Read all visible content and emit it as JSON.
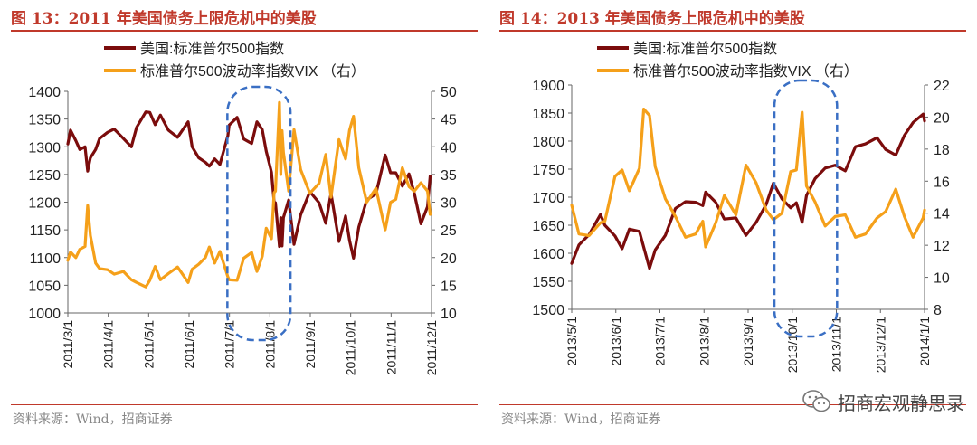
{
  "panels": [
    {
      "title": "图 13：2011 年美国债务上限危机中的美股",
      "source": "资料来源：Wind，招商证券"
    },
    {
      "title": "图 14：2013 年美国债务上限危机中的美股",
      "source": "资料来源：Wind，招商证券"
    }
  ],
  "watermark": {
    "text": "招商宏观静思录",
    "icon": "wechat-icon"
  },
  "colors": {
    "accent": "#c0392b",
    "sp500": "#7b0c0c",
    "vix": "#f5a01a",
    "highlight": "#3a6fc4"
  },
  "chart_data": [
    {
      "type": "line",
      "grid": false,
      "legend_placement": "top",
      "x_tick_labels": [
        "2011/3/1",
        "2011/4/1",
        "2011/5/1",
        "2011/6/1",
        "2011/7/1",
        "2011/8/1",
        "2011/9/1",
        "2011/10/1",
        "2011/11/1",
        "2011/12/1"
      ],
      "x_range": [
        "2011-03-01",
        "2011-12-01"
      ],
      "ylim_left": [
        1000,
        1400
      ],
      "yticks_left": [
        1000,
        1050,
        1100,
        1150,
        1200,
        1250,
        1300,
        1350,
        1400
      ],
      "ylim_right": [
        10,
        50
      ],
      "yticks_right": [
        10,
        15,
        20,
        25,
        30,
        35,
        40,
        45,
        50
      ],
      "highlight_period": [
        "2011-07-01",
        "2011-08-15"
      ],
      "series": [
        {
          "name": "美国:标准普尔500指数",
          "axis": "left",
          "color": "#7b0c0c",
          "points": [
            [
              "2011-03-01",
              1305
            ],
            [
              "2011-03-03",
              1330
            ],
            [
              "2011-03-07",
              1311
            ],
            [
              "2011-03-10",
              1295
            ],
            [
              "2011-03-14",
              1300
            ],
            [
              "2011-03-16",
              1256
            ],
            [
              "2011-03-18",
              1280
            ],
            [
              "2011-03-22",
              1295
            ],
            [
              "2011-03-25",
              1315
            ],
            [
              "2011-03-31",
              1326
            ],
            [
              "2011-04-05",
              1332
            ],
            [
              "2011-04-12",
              1315
            ],
            [
              "2011-04-18",
              1300
            ],
            [
              "2011-04-22",
              1335
            ],
            [
              "2011-04-29",
              1363
            ],
            [
              "2011-05-02",
              1362
            ],
            [
              "2011-05-06",
              1340
            ],
            [
              "2011-05-10",
              1357
            ],
            [
              "2011-05-16",
              1330
            ],
            [
              "2011-05-23",
              1317
            ],
            [
              "2011-05-31",
              1345
            ],
            [
              "2011-06-03",
              1300
            ],
            [
              "2011-06-08",
              1280
            ],
            [
              "2011-06-13",
              1272
            ],
            [
              "2011-06-16",
              1265
            ],
            [
              "2011-06-20",
              1278
            ],
            [
              "2011-06-24",
              1268
            ],
            [
              "2011-06-30",
              1320
            ],
            [
              "2011-07-01",
              1339
            ],
            [
              "2011-07-07",
              1353
            ],
            [
              "2011-07-12",
              1314
            ],
            [
              "2011-07-18",
              1306
            ],
            [
              "2011-07-22",
              1345
            ],
            [
              "2011-07-26",
              1331
            ],
            [
              "2011-07-29",
              1292
            ],
            [
              "2011-08-02",
              1254
            ],
            [
              "2011-08-04",
              1200
            ],
            [
              "2011-08-05",
              1199
            ],
            [
              "2011-08-08",
              1120
            ],
            [
              "2011-08-09",
              1172
            ],
            [
              "2011-08-10",
              1121
            ],
            [
              "2011-08-11",
              1172
            ],
            [
              "2011-08-15",
              1204
            ],
            [
              "2011-08-19",
              1124
            ],
            [
              "2011-08-24",
              1177
            ],
            [
              "2011-08-31",
              1219
            ],
            [
              "2011-09-07",
              1199
            ],
            [
              "2011-09-12",
              1162
            ],
            [
              "2011-09-16",
              1216
            ],
            [
              "2011-09-22",
              1129
            ],
            [
              "2011-09-27",
              1175
            ],
            [
              "2011-09-30",
              1131
            ],
            [
              "2011-10-03",
              1099
            ],
            [
              "2011-10-07",
              1155
            ],
            [
              "2011-10-13",
              1204
            ],
            [
              "2011-10-20",
              1215
            ],
            [
              "2011-10-27",
              1285
            ],
            [
              "2011-10-31",
              1253
            ],
            [
              "2011-11-04",
              1253
            ],
            [
              "2011-11-09",
              1229
            ],
            [
              "2011-11-14",
              1251
            ],
            [
              "2011-11-18",
              1216
            ],
            [
              "2011-11-23",
              1161
            ],
            [
              "2011-11-28",
              1192
            ],
            [
              "2011-11-30",
              1247
            ]
          ]
        },
        {
          "name": "标准普尔500波动率指数VIX （右）",
          "axis": "right",
          "color": "#f5a01a",
          "points": [
            [
              "2011-03-01",
              19.5
            ],
            [
              "2011-03-03",
              21
            ],
            [
              "2011-03-07",
              20
            ],
            [
              "2011-03-10",
              21.5
            ],
            [
              "2011-03-14",
              22
            ],
            [
              "2011-03-16",
              29.4
            ],
            [
              "2011-03-18",
              24
            ],
            [
              "2011-03-22",
              19
            ],
            [
              "2011-03-25",
              18
            ],
            [
              "2011-03-31",
              17.8
            ],
            [
              "2011-04-05",
              17
            ],
            [
              "2011-04-12",
              17.5
            ],
            [
              "2011-04-18",
              16
            ],
            [
              "2011-04-22",
              15.5
            ],
            [
              "2011-04-29",
              14.7
            ],
            [
              "2011-05-02",
              15.9
            ],
            [
              "2011-05-06",
              18.4
            ],
            [
              "2011-05-10",
              16
            ],
            [
              "2011-05-16",
              17.1
            ],
            [
              "2011-05-23",
              18.3
            ],
            [
              "2011-05-31",
              15.5
            ],
            [
              "2011-06-03",
              17.9
            ],
            [
              "2011-06-08",
              18.8
            ],
            [
              "2011-06-13",
              20
            ],
            [
              "2011-06-16",
              21.9
            ],
            [
              "2011-06-20",
              19
            ],
            [
              "2011-06-24",
              21.1
            ],
            [
              "2011-06-30",
              16.5
            ],
            [
              "2011-07-01",
              16
            ],
            [
              "2011-07-07",
              15.9
            ],
            [
              "2011-07-12",
              19.9
            ],
            [
              "2011-07-18",
              20.9
            ],
            [
              "2011-07-22",
              17.5
            ],
            [
              "2011-07-26",
              20.2
            ],
            [
              "2011-07-29",
              25.3
            ],
            [
              "2011-08-02",
              23.4
            ],
            [
              "2011-08-04",
              31.7
            ],
            [
              "2011-08-05",
              32
            ],
            [
              "2011-08-08",
              48
            ],
            [
              "2011-08-09",
              35
            ],
            [
              "2011-08-10",
              42.9
            ],
            [
              "2011-08-11",
              39
            ],
            [
              "2011-08-15",
              32
            ],
            [
              "2011-08-19",
              43.1
            ],
            [
              "2011-08-24",
              35.9
            ],
            [
              "2011-08-31",
              31.6
            ],
            [
              "2011-09-07",
              33.4
            ],
            [
              "2011-09-12",
              38.6
            ],
            [
              "2011-09-16",
              30.9
            ],
            [
              "2011-09-22",
              41.3
            ],
            [
              "2011-09-27",
              37.8
            ],
            [
              "2011-09-30",
              43
            ],
            [
              "2011-10-03",
              45.5
            ],
            [
              "2011-10-07",
              36.2
            ],
            [
              "2011-10-13",
              30
            ],
            [
              "2011-10-20",
              32.5
            ],
            [
              "2011-10-27",
              25
            ],
            [
              "2011-10-31",
              29.96
            ],
            [
              "2011-11-04",
              30.5
            ],
            [
              "2011-11-09",
              36.2
            ],
            [
              "2011-11-14",
              32.8
            ],
            [
              "2011-11-18",
              32
            ],
            [
              "2011-11-23",
              33.5
            ],
            [
              "2011-11-28",
              32
            ],
            [
              "2011-11-30",
              27.8
            ]
          ]
        }
      ]
    },
    {
      "type": "line",
      "grid": false,
      "legend_placement": "top",
      "x_tick_labels": [
        "2013/5/1",
        "2013/6/1",
        "2013/7/1",
        "2013/8/1",
        "2013/9/1",
        "2013/10/1",
        "2013/11/1",
        "2013/12/1",
        "2014/1/1"
      ],
      "x_range": [
        "2013-05-01",
        "2014-01-01"
      ],
      "ylim_left": [
        1500,
        1900
      ],
      "yticks_left": [
        1500,
        1550,
        1600,
        1650,
        1700,
        1750,
        1800,
        1850,
        1900
      ],
      "ylim_right": [
        8,
        22
      ],
      "yticks_right": [
        8,
        10,
        12,
        14,
        16,
        18,
        20,
        22
      ],
      "highlight_period": [
        "2013-09-20",
        "2013-10-31"
      ],
      "series": [
        {
          "name": "美国:标准普尔500指数",
          "axis": "left",
          "color": "#7b0c0c",
          "points": [
            [
              "2013-05-01",
              1582
            ],
            [
              "2013-05-06",
              1615
            ],
            [
              "2013-05-13",
              1633
            ],
            [
              "2013-05-21",
              1669
            ],
            [
              "2013-05-24",
              1650
            ],
            [
              "2013-05-31",
              1631
            ],
            [
              "2013-06-05",
              1608
            ],
            [
              "2013-06-10",
              1643
            ],
            [
              "2013-06-17",
              1639
            ],
            [
              "2013-06-24",
              1573
            ],
            [
              "2013-06-28",
              1606
            ],
            [
              "2013-07-05",
              1632
            ],
            [
              "2013-07-12",
              1680
            ],
            [
              "2013-07-19",
              1692
            ],
            [
              "2013-07-26",
              1691
            ],
            [
              "2013-07-31",
              1685
            ],
            [
              "2013-08-02",
              1709
            ],
            [
              "2013-08-09",
              1691
            ],
            [
              "2013-08-15",
              1661
            ],
            [
              "2013-08-23",
              1663
            ],
            [
              "2013-08-30",
              1632
            ],
            [
              "2013-09-06",
              1655
            ],
            [
              "2013-09-13",
              1687
            ],
            [
              "2013-09-18",
              1725
            ],
            [
              "2013-09-24",
              1697
            ],
            [
              "2013-09-30",
              1681
            ],
            [
              "2013-10-04",
              1690
            ],
            [
              "2013-10-08",
              1655
            ],
            [
              "2013-10-11",
              1703
            ],
            [
              "2013-10-17",
              1733
            ],
            [
              "2013-10-24",
              1752
            ],
            [
              "2013-10-31",
              1757
            ],
            [
              "2013-11-07",
              1747
            ],
            [
              "2013-11-14",
              1790
            ],
            [
              "2013-11-21",
              1795
            ],
            [
              "2013-11-29",
              1806
            ],
            [
              "2013-12-05",
              1785
            ],
            [
              "2013-12-12",
              1775
            ],
            [
              "2013-12-18",
              1810
            ],
            [
              "2013-12-24",
              1833
            ],
            [
              "2013-12-31",
              1848
            ],
            [
              "2014-01-01",
              1836
            ]
          ]
        },
        {
          "name": "标准普尔500波动率指数VIX （右）",
          "axis": "right",
          "color": "#f5a01a",
          "points": [
            [
              "2013-05-01",
              14.5
            ],
            [
              "2013-05-06",
              12.7
            ],
            [
              "2013-05-13",
              12.6
            ],
            [
              "2013-05-21",
              13.4
            ],
            [
              "2013-05-24",
              13.5
            ],
            [
              "2013-05-31",
              16.3
            ],
            [
              "2013-06-05",
              16.7
            ],
            [
              "2013-06-10",
              15.4
            ],
            [
              "2013-06-17",
              16.8
            ],
            [
              "2013-06-20",
              20.5
            ],
            [
              "2013-06-24",
              20.1
            ],
            [
              "2013-06-28",
              16.9
            ],
            [
              "2013-07-05",
              14.9
            ],
            [
              "2013-07-12",
              13.8
            ],
            [
              "2013-07-19",
              12.5
            ],
            [
              "2013-07-26",
              12.7
            ],
            [
              "2013-07-31",
              13.5
            ],
            [
              "2013-08-02",
              11.9
            ],
            [
              "2013-08-09",
              13.4
            ],
            [
              "2013-08-15",
              15.1
            ],
            [
              "2013-08-23",
              13.9
            ],
            [
              "2013-08-30",
              17
            ],
            [
              "2013-09-06",
              15.9
            ],
            [
              "2013-09-13",
              14.2
            ],
            [
              "2013-09-18",
              13.6
            ],
            [
              "2013-09-24",
              14
            ],
            [
              "2013-09-30",
              16.6
            ],
            [
              "2013-10-04",
              16.7
            ],
            [
              "2013-10-08",
              20.3
            ],
            [
              "2013-10-11",
              15.7
            ],
            [
              "2013-10-17",
              14.7
            ],
            [
              "2013-10-24",
              13.2
            ],
            [
              "2013-10-31",
              13.8
            ],
            [
              "2013-11-07",
              13.9
            ],
            [
              "2013-11-14",
              12.5
            ],
            [
              "2013-11-21",
              12.7
            ],
            [
              "2013-11-29",
              13.7
            ],
            [
              "2013-12-05",
              14.1
            ],
            [
              "2013-12-12",
              15.5
            ],
            [
              "2013-12-18",
              13.8
            ],
            [
              "2013-12-24",
              12.5
            ],
            [
              "2013-12-31",
              13.7
            ],
            [
              "2014-01-01",
              14.2
            ]
          ]
        }
      ]
    }
  ]
}
